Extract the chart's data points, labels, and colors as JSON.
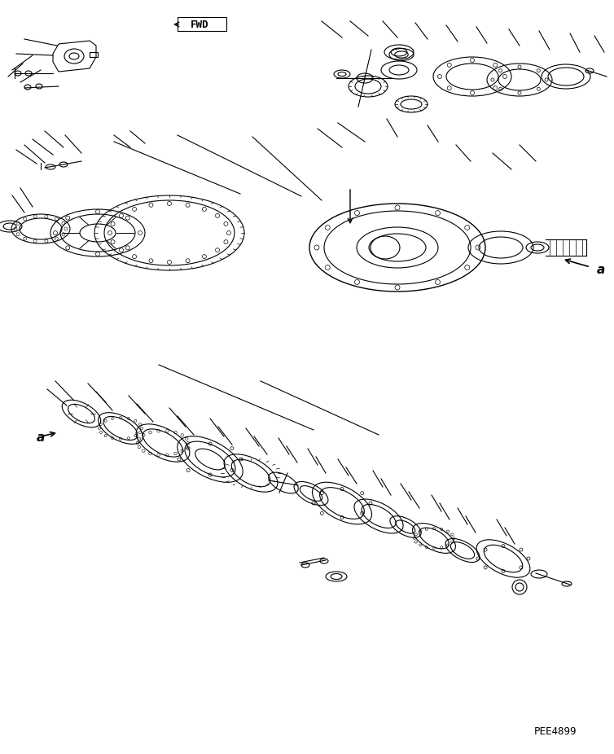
{
  "bg_color": "#ffffff",
  "line_color": "#000000",
  "part_code": "PEE4899",
  "fwd_label": "FWD",
  "label_a": "a",
  "figsize": [
    7.54,
    9.26
  ],
  "dpi": 100
}
